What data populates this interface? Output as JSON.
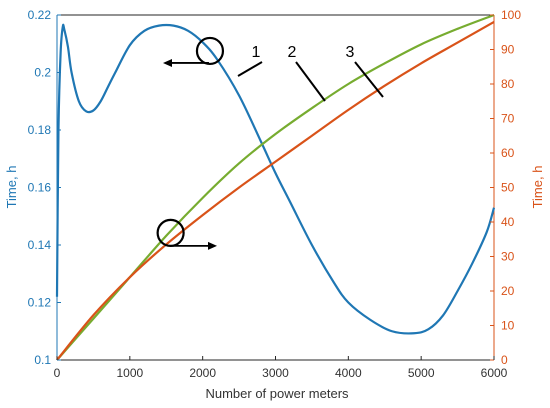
{
  "chart_data": {
    "type": "line",
    "xlabel": "Number of power meters",
    "ylabel_left": "Time, h",
    "ylabel_right": "Time, h",
    "xlim": [
      0,
      6000
    ],
    "ylim_left": [
      0.1,
      0.22
    ],
    "ylim_right": [
      0,
      100
    ],
    "x_ticks": [
      "0",
      "1000",
      "2000",
      "3000",
      "4000",
      "5000",
      "6000"
    ],
    "y_ticks_left": [
      "0.1",
      "0.12",
      "0.14",
      "0.16",
      "0.18",
      "0.2",
      "0.22"
    ],
    "y_ticks_right": [
      "0",
      "10",
      "20",
      "30",
      "40",
      "50",
      "60",
      "70",
      "80",
      "90",
      "100"
    ],
    "grid": false,
    "legend": "none",
    "colors": {
      "series_1": "#1f77b4",
      "series_2": "#77ac30",
      "series_3": "#d95319",
      "left_axis": "#1f77b4",
      "right_axis": "#d95319"
    },
    "series": [
      {
        "label": "1",
        "axis": "left",
        "x": [
          0,
          20,
          50,
          80,
          100,
          150,
          200,
          300,
          400,
          500,
          600,
          700,
          800,
          1000,
          1200,
          1400,
          1600,
          1800,
          2000,
          2200,
          2500,
          2800,
          3000,
          3200,
          3500,
          3800,
          4000,
          4300,
          4600,
          4900,
          5100,
          5300,
          5500,
          5700,
          5900,
          6000
        ],
        "y": [
          0.122,
          0.18,
          0.207,
          0.216,
          0.215,
          0.209,
          0.2,
          0.19,
          0.1865,
          0.1868,
          0.19,
          0.195,
          0.2,
          0.2095,
          0.2145,
          0.2163,
          0.2163,
          0.2145,
          0.2105,
          0.2045,
          0.192,
          0.176,
          0.165,
          0.155,
          0.14,
          0.127,
          0.12,
          0.114,
          0.11,
          0.1093,
          0.1107,
          0.1155,
          0.124,
          0.1335,
          0.1445,
          0.153
        ]
      },
      {
        "label": "2",
        "axis": "right",
        "x": [
          0,
          500,
          1000,
          1500,
          2000,
          2500,
          3000,
          3500,
          4000,
          4500,
          5000,
          5500,
          6000
        ],
        "y": [
          0,
          12,
          24,
          36,
          47,
          57,
          65.5,
          73,
          80,
          86,
          91.5,
          96,
          100
        ]
      },
      {
        "label": "3",
        "axis": "right",
        "x": [
          0,
          500,
          1000,
          1500,
          2000,
          2500,
          3000,
          3500,
          4000,
          4500,
          5000,
          5500,
          6000
        ],
        "y": [
          0,
          13,
          24,
          33.5,
          42,
          50,
          57.5,
          65,
          72.5,
          79.5,
          86,
          92,
          98
        ]
      }
    ],
    "annotations": {
      "label_1": "1",
      "label_2": "2",
      "label_3": "3"
    }
  }
}
